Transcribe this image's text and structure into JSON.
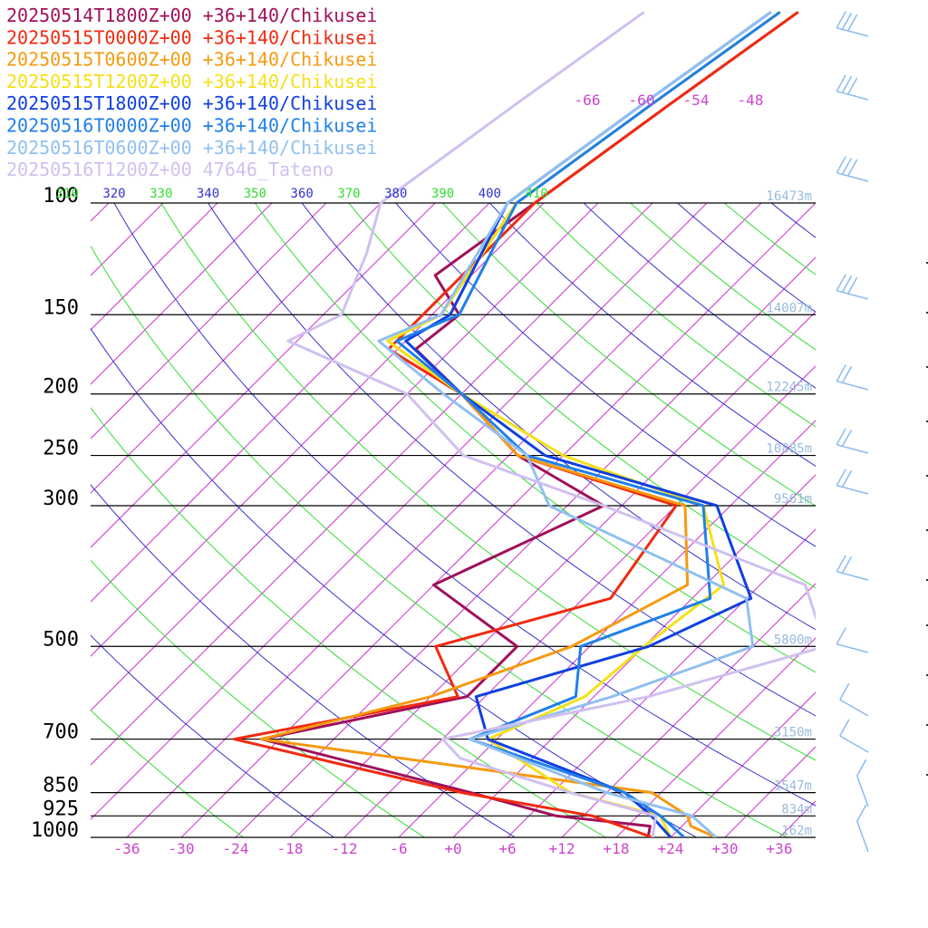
{
  "chart_data": {
    "type": "line",
    "legend": [
      {
        "label": "20250514T1800Z+00 +36+140/Chikusei",
        "color": "#a0105a"
      },
      {
        "label": "20250515T0000Z+00 +36+140/Chikusei",
        "color": "#f02a10"
      },
      {
        "label": "20250515T0600Z+00 +36+140/Chikusei",
        "color": "#f59a10"
      },
      {
        "label": "20250515T1200Z+00 +36+140/Chikusei",
        "color": "#f5e018"
      },
      {
        "label": "20250515T1800Z+00 +36+140/Chikusei",
        "color": "#1040e0"
      },
      {
        "label": "20250516T0000Z+00 +36+140/Chikusei",
        "color": "#2080e8"
      },
      {
        "label": "20250516T0600Z+00 +36+140/Chikusei",
        "color": "#90c0f0"
      },
      {
        "label": "20250516T1200Z+00 47646_Tateno",
        "color": "#d0c0f0"
      }
    ],
    "pressure_levels": [
      {
        "p": 100,
        "label": "100",
        "height": "16473m"
      },
      {
        "p": 150,
        "label": "150",
        "height": "14007m"
      },
      {
        "p": 200,
        "label": "200",
        "height": "12245m"
      },
      {
        "p": 250,
        "label": "250",
        "height": "10885m"
      },
      {
        "p": 300,
        "label": "300",
        "height": "9561m"
      },
      {
        "p": 500,
        "label": "500",
        "height": "5800m"
      },
      {
        "p": 700,
        "label": "700",
        "height": "3150m"
      },
      {
        "p": 850,
        "label": "850",
        "height": "1547m"
      },
      {
        "p": 925,
        "label": "925",
        "height": "834m"
      },
      {
        "p": 1000,
        "label": "1000",
        "height": "162m"
      }
    ],
    "x_ticks": [
      "-36",
      "-30",
      "-24",
      "-18",
      "-12",
      "-6",
      "+0",
      "+6",
      "+12",
      "+18",
      "+24",
      "+30",
      "+36"
    ],
    "x_tick_values": [
      -36,
      -30,
      -24,
      -18,
      -12,
      -6,
      0,
      6,
      12,
      18,
      24,
      30,
      36
    ],
    "top_isotherm_labels": [
      {
        "t": -66,
        "label": "-66"
      },
      {
        "t": -60,
        "label": "-60"
      },
      {
        "t": -54,
        "label": "-54"
      },
      {
        "t": -48,
        "label": "-48"
      }
    ],
    "theta_labels": [
      {
        "theta": 310,
        "label": "310",
        "color": "#33dd33"
      },
      {
        "theta": 320,
        "label": "320",
        "color": "#3333cc"
      },
      {
        "theta": 330,
        "label": "330",
        "color": "#33dd33"
      },
      {
        "theta": 340,
        "label": "340",
        "color": "#3333cc"
      },
      {
        "theta": 350,
        "label": "350",
        "color": "#33dd33"
      },
      {
        "theta": 360,
        "label": "360",
        "color": "#3333cc"
      },
      {
        "theta": 370,
        "label": "370",
        "color": "#33dd33"
      },
      {
        "theta": 380,
        "label": "380",
        "color": "#3333cc"
      },
      {
        "theta": 390,
        "label": "390",
        "color": "#33dd33"
      },
      {
        "theta": 400,
        "label": "400",
        "color": "#3333cc"
      },
      {
        "theta": 410,
        "label": "410",
        "color": "#33dd33"
      }
    ],
    "p_range": [
      100,
      1000
    ],
    "skew_t_range_at_1000hPa": [
      -40,
      40
    ],
    "series": [
      {
        "name": "20250514T1800Z+00 +36+140/Chikusei",
        "color": "#a0105a",
        "points": [
          [
            1000,
            21.5
          ],
          [
            960,
            20.5
          ],
          [
            925,
            9
          ],
          [
            850,
            -3
          ],
          [
            700,
            -32
          ],
          [
            600,
            -14
          ],
          [
            500,
            -14
          ],
          [
            400,
            -30
          ],
          [
            300,
            -20
          ],
          [
            250,
            -35
          ],
          [
            200,
            -48
          ],
          [
            170,
            -58
          ],
          [
            150,
            -57
          ],
          [
            130,
            -64
          ],
          [
            100,
            -61
          ]
        ]
      },
      {
        "name": "20250515T0000Z+00 +36+140/Chikusei",
        "color": "#f02a10",
        "points": [
          [
            1000,
            22
          ],
          [
            925,
            13
          ],
          [
            850,
            -4
          ],
          [
            700,
            -35
          ],
          [
            600,
            -15
          ],
          [
            500,
            -23
          ],
          [
            420,
            -9
          ],
          [
            300,
            -12
          ],
          [
            250,
            -35
          ],
          [
            200,
            -48
          ],
          [
            170,
            -61
          ],
          [
            150,
            -61
          ],
          [
            100,
            -61
          ]
        ]
      },
      {
        "name": "20250515T0600Z+00 +36+140/Chikusei",
        "color": "#f59a10",
        "points": [
          [
            1000,
            29
          ],
          [
            960,
            25
          ],
          [
            925,
            23.5
          ],
          [
            850,
            17
          ],
          [
            700,
            -32
          ],
          [
            600,
            -18
          ],
          [
            500,
            -8
          ],
          [
            400,
            -2
          ],
          [
            300,
            -11
          ],
          [
            250,
            -35
          ],
          [
            200,
            -48
          ],
          [
            165,
            -62
          ],
          [
            150,
            -59
          ],
          [
            100,
            -63
          ]
        ]
      },
      {
        "name": "20250515T1200Z+00 +36+140/Chikusei",
        "color": "#f5e018",
        "points": [
          [
            1000,
            24
          ],
          [
            925,
            20.5
          ],
          [
            850,
            8
          ],
          [
            700,
            -7
          ],
          [
            600,
            -1
          ],
          [
            500,
            0
          ],
          [
            400,
            2
          ],
          [
            300,
            -9
          ],
          [
            250,
            -30
          ],
          [
            200,
            -48
          ],
          [
            165,
            -62
          ],
          [
            150,
            -59
          ],
          [
            100,
            -63
          ]
        ]
      },
      {
        "name": "20250515T1800Z+00 +36+140/Chikusei",
        "color": "#1040e0",
        "points": [
          [
            1000,
            24
          ],
          [
            925,
            19.5
          ],
          [
            850,
            14
          ],
          [
            700,
            -7
          ],
          [
            600,
            -13
          ],
          [
            500,
            0.5
          ],
          [
            420,
            6.5
          ],
          [
            300,
            -7.5
          ],
          [
            250,
            -32
          ],
          [
            200,
            -48
          ],
          [
            165,
            -60
          ],
          [
            150,
            -58
          ],
          [
            100,
            -64
          ]
        ]
      },
      {
        "name": "20250516T0000Z+00 +36+140/Chikusei",
        "color": "#2080e8",
        "points": [
          [
            1000,
            25.5
          ],
          [
            925,
            20.5
          ],
          [
            850,
            14
          ],
          [
            700,
            -9
          ],
          [
            600,
            -2
          ],
          [
            500,
            -7
          ],
          [
            420,
            2
          ],
          [
            300,
            -9
          ],
          [
            250,
            -34
          ],
          [
            200,
            -48
          ],
          [
            165,
            -61
          ],
          [
            150,
            -57
          ],
          [
            100,
            -63
          ]
        ]
      },
      {
        "name": "20250516T0600Z+00 +36+140/Chikusei",
        "color": "#90c0f0",
        "points": [
          [
            1000,
            29
          ],
          [
            925,
            24
          ],
          [
            850,
            12
          ],
          [
            700,
            -9
          ],
          [
            600,
            2
          ],
          [
            500,
            12
          ],
          [
            420,
            6
          ],
          [
            300,
            -26
          ],
          [
            250,
            -34
          ],
          [
            200,
            -50
          ],
          [
            165,
            -63
          ],
          [
            150,
            -59
          ],
          [
            100,
            -64
          ]
        ]
      },
      {
        "name": "20250516T1200Z+00 47646_Tateno",
        "color": "#d0c0f0",
        "points": [
          [
            1000,
            22
          ],
          [
            925,
            20
          ],
          [
            850,
            8
          ],
          [
            750,
            -8
          ],
          [
            700,
            -12
          ],
          [
            600,
            6
          ],
          [
            500,
            20
          ],
          [
            400,
            11
          ],
          [
            300,
            -20
          ],
          [
            250,
            -41
          ],
          [
            200,
            -54
          ],
          [
            165,
            -73
          ],
          [
            150,
            -70
          ],
          [
            120,
            -74
          ],
          [
            100,
            -78
          ]
        ]
      }
    ]
  }
}
